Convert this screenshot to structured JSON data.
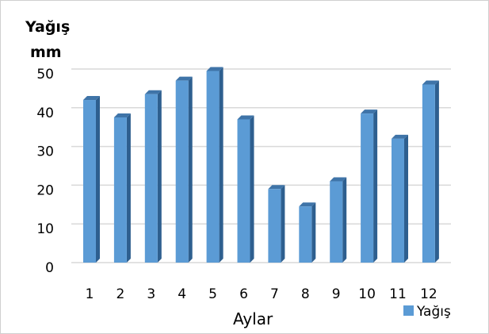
{
  "chart_data": {
    "type": "bar",
    "categories": [
      "1",
      "2",
      "3",
      "4",
      "5",
      "6",
      "7",
      "8",
      "9",
      "10",
      "11",
      "12"
    ],
    "series": [
      {
        "name": "Yağış",
        "values": [
          42,
          37.5,
          43.5,
          47,
          49.5,
          37,
          19,
          14.5,
          21,
          38.5,
          32,
          46
        ]
      }
    ],
    "ylabel": [
      "Yağış",
      "mm"
    ],
    "xlabel": "Aylar",
    "ylim": [
      0,
      50
    ],
    "yticks": [
      "0",
      "10",
      "20",
      "30",
      "40",
      "50"
    ],
    "grid": true,
    "legend": "bottom-right",
    "colors": {
      "bar_front": "#5b9bd5",
      "bar_side": "#2e5f8f",
      "bar_top": "#3f74a8",
      "grid": "#d9d9d9"
    }
  }
}
